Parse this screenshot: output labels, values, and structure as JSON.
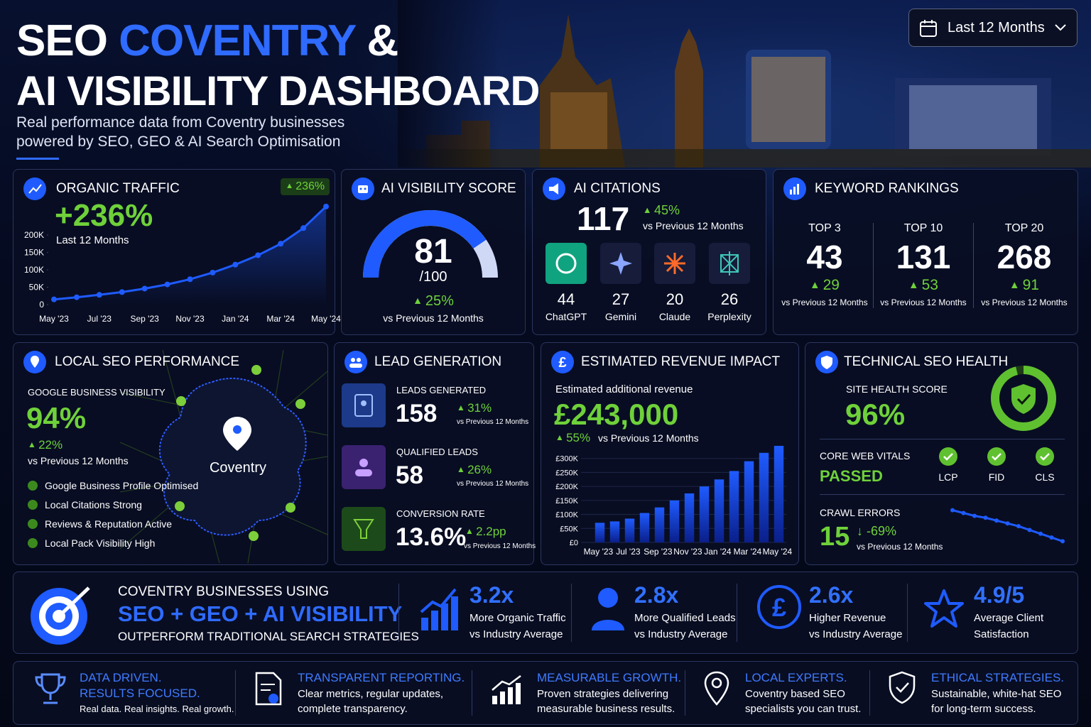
{
  "header": {
    "title": {
      "prefix": "SEO ",
      "highlight": "COVENTRY",
      "suffix": " &",
      "line2": "AI VISIBILITY DASHBOARD"
    },
    "subtitle": [
      "Real performance data from Coventry businesses",
      "powered by SEO, GEO & AI Search Optimisation"
    ]
  },
  "date_filter": "Last 12 Months",
  "organic_traffic": {
    "title": "ORGANIC TRAFFIC",
    "badge": "236%",
    "headline": "+236%",
    "period": "Last 12 Months",
    "chart": {
      "type": "line",
      "categories": [
        "May '23",
        null,
        "Jul '23",
        null,
        "Sep '23",
        null,
        "Nov '23",
        null,
        "Jan '24",
        null,
        "Mar '24",
        null,
        "May '24"
      ],
      "values": [
        15000,
        21000,
        28000,
        36000,
        46000,
        58000,
        73000,
        92000,
        115000,
        142000,
        175000,
        220000,
        282000
      ],
      "color": "#1f5bff",
      "ylim": [
        0,
        290000
      ],
      "yticks": [
        0,
        {
          "value": 50000,
          "label": "50K"
        },
        {
          "value": 100000,
          "label": "100K"
        },
        {
          "value": 150000,
          "label": "150K"
        },
        {
          "value": 200000,
          "label": "200K"
        }
      ]
    }
  },
  "ai_visibility": {
    "title": "AI VISIBILITY SCORE",
    "score": 81,
    "max": {
      "value": 100,
      "label": "/100"
    },
    "change": "25%",
    "comparison": "vs Previous 12 Months"
  },
  "ai_citations": {
    "title": "AI CITATIONS",
    "total": "117",
    "change": "45%",
    "comparison": "vs Previous 12 Months",
    "platforms": [
      {
        "count": "44",
        "name": "ChatGPT"
      },
      {
        "count": "27",
        "name": "Gemini"
      },
      {
        "count": "20",
        "name": "Claude"
      },
      {
        "count": "26",
        "name": "Perplexity"
      }
    ]
  },
  "keyword_rankings": {
    "title": "KEYWORD RANKINGS",
    "groups": [
      {
        "label": "TOP 3",
        "count": "43",
        "change": "29",
        "comparison": "vs Previous 12 Months"
      },
      {
        "label": "TOP 10",
        "count": "131",
        "change": "53",
        "comparison": "vs Previous 12 Months"
      },
      {
        "label": "TOP 20",
        "count": "268",
        "change": "91",
        "comparison": "vs Previous 12 Months"
      }
    ]
  },
  "local_seo": {
    "title": "LOCAL SEO PERFORMANCE",
    "metric_label": "GOOGLE BUSINESS VISIBILITY",
    "value": "94%",
    "change": "22%",
    "comparison": "vs Previous 12 Months",
    "checklist": [
      "Google Business Profile Optimised",
      "Local Citations Strong",
      "Reviews & Reputation Active",
      "Local Pack Visibility High"
    ],
    "map_label": "Coventry"
  },
  "lead_generation": {
    "title": "LEAD GENERATION",
    "items": [
      {
        "label": "LEADS GENERATED",
        "value": "158",
        "change": "31%",
        "comparison": "vs Previous 12 Months"
      },
      {
        "label": "QUALIFIED LEADS",
        "value": "58",
        "change": "26%",
        "comparison": "vs Previous 12 Months"
      },
      {
        "label": "CONVERSION RATE",
        "value": "13.6%",
        "change": "2.2pp",
        "comparison": "vs Previous 12 Months"
      }
    ]
  },
  "revenue_impact": {
    "title": "ESTIMATED REVENUE IMPACT",
    "subtitle": "Estimated additional revenue",
    "headline": "£243,000",
    "change": "55%",
    "comparison": "vs Previous 12 Months",
    "chart": {
      "type": "bar",
      "categories": [
        "May '23",
        null,
        "Jul '23",
        null,
        "Sep '23",
        null,
        "Nov '23",
        null,
        "Jan '24",
        null,
        "Mar '24",
        null,
        "May '24"
      ],
      "values": [
        70000,
        75000,
        85000,
        105000,
        125000,
        150000,
        175000,
        200000,
        225000,
        255000,
        290000,
        320000,
        345000
      ],
      "color": "#1f5bff",
      "ylim": [
        0,
        350000
      ],
      "yticks": [
        {
          "value": 0,
          "label": "£0"
        },
        {
          "value": 50000,
          "label": "£50K"
        },
        {
          "value": 100000,
          "label": "£100K"
        },
        {
          "value": 150000,
          "label": "£150K"
        },
        {
          "value": 200000,
          "label": "£200K"
        },
        {
          "value": 250000,
          "label": "£250K"
        },
        {
          "value": 300000,
          "label": "£300K"
        }
      ]
    }
  },
  "technical_seo": {
    "title": "TECHNICAL SEO HEALTH",
    "site_health_label": "SITE HEALTH SCORE",
    "site_health": {
      "value": 96,
      "label": "96%"
    },
    "core_web_vitals_label": "CORE WEB VITALS",
    "core_web_vitals_status": "PASSED",
    "vitals": [
      "LCP",
      "FID",
      "CLS"
    ],
    "crawl_errors_label": "CRAWL ERRORS",
    "crawl_errors": "15",
    "crawl_change": "-69%",
    "comparison": "vs Previous 12 Months",
    "crawl_trend": {
      "type": "line",
      "values": [
        48,
        45,
        42,
        40,
        37,
        34,
        31,
        27,
        23,
        19,
        15
      ],
      "color": "#1f5bff",
      "ylim": [
        10,
        50
      ]
    }
  },
  "banner": {
    "line1": "COVENTRY BUSINESSES USING",
    "line2": "SEO + GEO + AI VISIBILITY",
    "line3": "OUTPERFORM TRADITIONAL SEARCH STRATEGIES",
    "stats": [
      {
        "value": "3.2x",
        "line1": "More Organic Traffic",
        "line2": "vs Industry Average"
      },
      {
        "value": "2.8x",
        "line1": "More Qualified Leads",
        "line2": "vs Industry Average"
      },
      {
        "value": "2.6x",
        "line1": "Higher Revenue",
        "line2": "vs Industry Average"
      },
      {
        "value": "4.9/5",
        "line1": "Average Client",
        "line2": "Satisfaction"
      }
    ]
  },
  "footer": [
    {
      "title": [
        "DATA DRIVEN.",
        "RESULTS FOCUSED."
      ],
      "text": [
        "Real data. Real insights. Real growth."
      ]
    },
    {
      "title": [
        "TRANSPARENT REPORTING."
      ],
      "text": [
        "Clear metrics, regular updates,",
        "complete transparency."
      ]
    },
    {
      "title": [
        "MEASURABLE GROWTH."
      ],
      "text": [
        "Proven strategies delivering",
        "measurable business results."
      ]
    },
    {
      "title": [
        "LOCAL EXPERTS."
      ],
      "text": [
        "Coventry based SEO",
        "specialists you can trust."
      ]
    },
    {
      "title": [
        "ETHICAL STRATEGIES."
      ],
      "text": [
        "Sustainable, white-hat SEO",
        "for long-term success."
      ]
    }
  ]
}
